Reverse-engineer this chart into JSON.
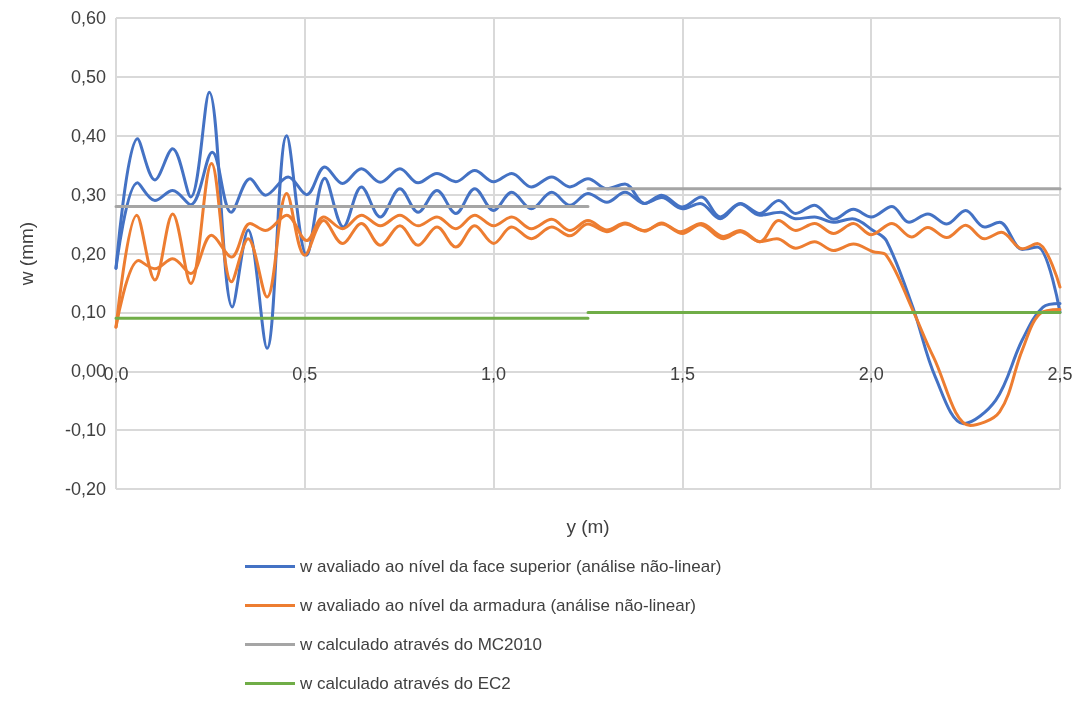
{
  "chart_data": {
    "type": "line",
    "xlabel": "y (m)",
    "ylabel": "w (mm)",
    "xlim": [
      0,
      2.5
    ],
    "xticks": [
      {
        "value": 0,
        "label": "0,0"
      },
      {
        "value": 0.5,
        "label": "0,5"
      },
      {
        "value": 1,
        "label": "1,0"
      },
      {
        "value": 1.5,
        "label": "1,5"
      },
      {
        "value": 2,
        "label": "2,0"
      },
      {
        "value": 2.5,
        "label": "2,5"
      }
    ],
    "ylim": [
      -0.2,
      0.6
    ],
    "yticks": [
      {
        "value": -0.2,
        "label": "-0,20"
      },
      {
        "value": -0.1,
        "label": "-0,10"
      },
      {
        "value": 0,
        "label": "0,00"
      },
      {
        "value": 0.1,
        "label": "0,10"
      },
      {
        "value": 0.2,
        "label": "0,20"
      },
      {
        "value": 0.3,
        "label": "0,30"
      },
      {
        "value": 0.4,
        "label": "0,40"
      },
      {
        "value": 0.5,
        "label": "0,50"
      },
      {
        "value": 0.6,
        "label": "0,60"
      }
    ],
    "grid": true,
    "legend": "bottom",
    "marker": "none",
    "line_style": "solid",
    "series": [
      {
        "name": "w avaliado ao nível da face superior (análise não-linear)",
        "color": "#4472c4",
        "x": [
          0,
          0.057,
          0.103,
          0.15,
          0.198,
          0.247,
          0.308,
          0.35,
          0.4,
          0.452,
          0.505,
          0.553,
          0.602,
          0.65,
          0.7,
          0.752,
          0.8,
          0.85,
          0.9,
          0.95,
          1.0,
          1.048,
          1.1,
          1.154,
          1.202,
          1.25,
          1.3,
          1.348,
          1.4,
          1.445,
          1.5,
          1.547,
          1.6,
          1.653,
          1.705,
          1.76,
          1.8,
          1.85,
          1.9,
          1.95,
          2.005,
          2.04,
          2.11,
          2.17,
          2.245,
          2.33,
          2.4,
          2.455,
          2.5
        ],
        "values": [
          0.175,
          0.395,
          0.325,
          0.378,
          0.296,
          0.474,
          0.109,
          0.24,
          0.039,
          0.4,
          0.197,
          0.328,
          0.245,
          0.313,
          0.262,
          0.31,
          0.27,
          0.307,
          0.268,
          0.31,
          0.273,
          0.304,
          0.276,
          0.304,
          0.282,
          0.302,
          0.287,
          0.304,
          0.285,
          0.295,
          0.276,
          0.285,
          0.259,
          0.284,
          0.265,
          0.27,
          0.259,
          0.262,
          0.253,
          0.259,
          0.239,
          0.222,
          0.109,
          -0.01,
          -0.089,
          -0.049,
          0.053,
          0.109,
          0.115
        ]
      },
      {
        "color": "#4472c4",
        "x": [
          0,
          0.057,
          0.103,
          0.15,
          0.198,
          0.255,
          0.305,
          0.355,
          0.396,
          0.456,
          0.505,
          0.553,
          0.6,
          0.65,
          0.7,
          0.752,
          0.8,
          0.85,
          0.9,
          0.95,
          1.0,
          1.048,
          1.1,
          1.154,
          1.202,
          1.25,
          1.3,
          1.348,
          1.4,
          1.445,
          1.5,
          1.55,
          1.6,
          1.653,
          1.705,
          1.755,
          1.8,
          1.85,
          1.9,
          1.953,
          2.0,
          2.055,
          2.1,
          2.15,
          2.2,
          2.25,
          2.3,
          2.34,
          2.4,
          2.44,
          2.5
        ],
        "values": [
          0.175,
          0.32,
          0.29,
          0.307,
          0.283,
          0.372,
          0.27,
          0.327,
          0.299,
          0.33,
          0.3,
          0.347,
          0.319,
          0.344,
          0.321,
          0.344,
          0.32,
          0.336,
          0.322,
          0.341,
          0.322,
          0.336,
          0.313,
          0.33,
          0.313,
          0.327,
          0.31,
          0.318,
          0.285,
          0.299,
          0.279,
          0.296,
          0.262,
          0.285,
          0.268,
          0.29,
          0.268,
          0.282,
          0.258,
          0.275,
          0.262,
          0.28,
          0.253,
          0.267,
          0.25,
          0.273,
          0.245,
          0.253,
          0.207,
          0.211,
          0.1
        ]
      },
      {
        "name": "w avaliado ao nível da armadura (análise não-linear)",
        "color": "#ed7d31",
        "x": [
          0,
          0.055,
          0.103,
          0.15,
          0.198,
          0.253,
          0.306,
          0.35,
          0.4,
          0.452,
          0.5,
          0.55,
          0.6,
          0.65,
          0.7,
          0.752,
          0.8,
          0.85,
          0.9,
          0.95,
          1.0,
          1.048,
          1.1,
          1.154,
          1.202,
          1.25,
          1.3,
          1.348,
          1.4,
          1.445,
          1.5,
          1.547,
          1.608,
          1.653,
          1.705,
          1.75,
          1.8,
          1.85,
          1.9,
          1.953,
          2.005,
          2.04,
          2.11,
          2.165,
          2.262,
          2.34,
          2.4,
          2.447,
          2.5
        ],
        "values": [
          0.075,
          0.265,
          0.155,
          0.267,
          0.149,
          0.353,
          0.152,
          0.225,
          0.126,
          0.302,
          0.197,
          0.256,
          0.217,
          0.251,
          0.214,
          0.247,
          0.214,
          0.245,
          0.211,
          0.247,
          0.217,
          0.245,
          0.225,
          0.245,
          0.23,
          0.25,
          0.237,
          0.25,
          0.239,
          0.25,
          0.234,
          0.249,
          0.225,
          0.237,
          0.22,
          0.225,
          0.209,
          0.22,
          0.205,
          0.216,
          0.203,
          0.197,
          0.104,
          0.024,
          -0.092,
          -0.069,
          0.036,
          0.098,
          0.105
        ]
      },
      {
        "color": "#ed7d31",
        "x": [
          0,
          0.06,
          0.103,
          0.15,
          0.198,
          0.253,
          0.306,
          0.355,
          0.396,
          0.452,
          0.505,
          0.55,
          0.6,
          0.65,
          0.7,
          0.752,
          0.8,
          0.85,
          0.9,
          0.95,
          1.0,
          1.048,
          1.1,
          1.154,
          1.202,
          1.25,
          1.3,
          1.348,
          1.4,
          1.445,
          1.494,
          1.55,
          1.608,
          1.653,
          1.705,
          1.755,
          1.8,
          1.85,
          1.9,
          1.953,
          2.0,
          2.055,
          2.107,
          2.15,
          2.2,
          2.25,
          2.3,
          2.345,
          2.4,
          2.44,
          2.5
        ],
        "values": [
          0.075,
          0.188,
          0.174,
          0.191,
          0.166,
          0.231,
          0.194,
          0.251,
          0.239,
          0.265,
          0.222,
          0.262,
          0.242,
          0.265,
          0.247,
          0.265,
          0.247,
          0.262,
          0.242,
          0.265,
          0.247,
          0.262,
          0.242,
          0.258,
          0.239,
          0.256,
          0.24,
          0.252,
          0.238,
          0.252,
          0.237,
          0.251,
          0.229,
          0.239,
          0.22,
          0.256,
          0.239,
          0.251,
          0.234,
          0.251,
          0.232,
          0.251,
          0.228,
          0.244,
          0.227,
          0.248,
          0.225,
          0.236,
          0.208,
          0.217,
          0.143
        ]
      },
      {
        "name": "w calculado através do MC2010",
        "color": "#a5a5a5",
        "x": [
          0,
          1.25,
          null,
          1.25,
          2.5
        ],
        "values": [
          0.28,
          0.28,
          null,
          0.31,
          0.31
        ]
      },
      {
        "name": "w calculado através do EC2",
        "color": "#70ad47",
        "x": [
          0,
          1.25,
          null,
          1.25,
          2.5
        ],
        "values": [
          0.09,
          0.09,
          null,
          0.1,
          0.1
        ]
      }
    ]
  }
}
